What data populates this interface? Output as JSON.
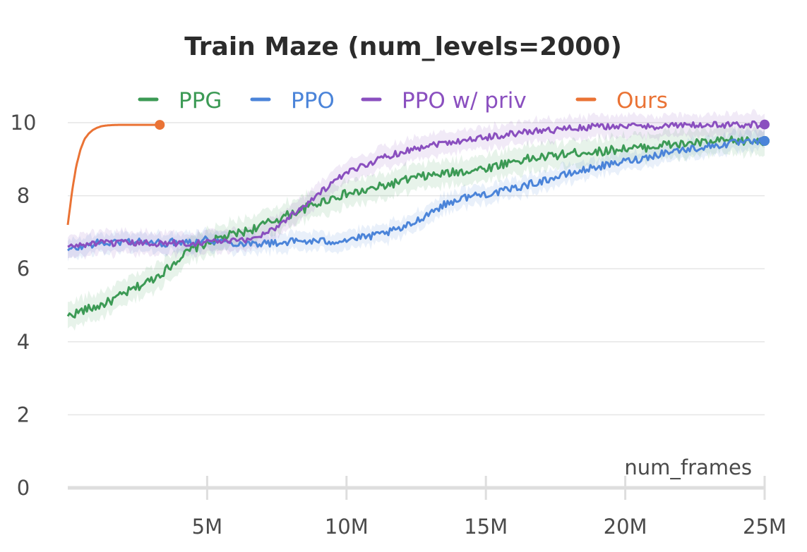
{
  "chart_data": {
    "type": "line",
    "title": "Train Maze (num_levels=2000)",
    "xlabel": "num_frames",
    "ylabel": "",
    "xlim": [
      0,
      25000000
    ],
    "ylim": [
      0,
      10.3
    ],
    "x_ticks": [
      {
        "value": 5000000,
        "label": "5M"
      },
      {
        "value": 10000000,
        "label": "10M"
      },
      {
        "value": 15000000,
        "label": "15M"
      },
      {
        "value": 20000000,
        "label": "20M"
      },
      {
        "value": 25000000,
        "label": "25M"
      }
    ],
    "y_ticks": [
      {
        "value": 0,
        "label": "0"
      },
      {
        "value": 2,
        "label": "2"
      },
      {
        "value": 4,
        "label": "4"
      },
      {
        "value": 6,
        "label": "6"
      },
      {
        "value": 8,
        "label": "8"
      },
      {
        "value": 10,
        "label": "10"
      }
    ],
    "grid": true,
    "legend_position": "top",
    "series": [
      {
        "name": "PPG",
        "color": "#3c9a55",
        "band": 0.35,
        "noise": 0.12,
        "end_marker": true,
        "x": [
          0,
          500000,
          1000000,
          1500000,
          2000000,
          2500000,
          3000000,
          3500000,
          4000000,
          4500000,
          5000000,
          5500000,
          6000000,
          6500000,
          7000000,
          7500000,
          8000000,
          8500000,
          9000000,
          9500000,
          10000000,
          10500000,
          11000000,
          11500000,
          12000000,
          12500000,
          13000000,
          13500000,
          14000000,
          14500000,
          15000000,
          15500000,
          16000000,
          16500000,
          17000000,
          17500000,
          18000000,
          18500000,
          19000000,
          19500000,
          20000000,
          20500000,
          21000000,
          21500000,
          22000000,
          22500000,
          23000000,
          23500000,
          24000000,
          24500000,
          25000000
        ],
        "values": [
          4.7,
          4.85,
          4.95,
          5.1,
          5.3,
          5.5,
          5.7,
          5.95,
          6.3,
          6.55,
          6.7,
          6.85,
          6.95,
          7.05,
          7.2,
          7.35,
          7.5,
          7.65,
          7.8,
          7.95,
          8.05,
          8.1,
          8.2,
          8.3,
          8.4,
          8.5,
          8.55,
          8.6,
          8.65,
          8.7,
          8.75,
          8.85,
          8.95,
          9.0,
          9.05,
          9.1,
          9.15,
          9.2,
          9.2,
          9.25,
          9.3,
          9.3,
          9.35,
          9.4,
          9.4,
          9.45,
          9.45,
          9.5,
          9.5,
          9.5,
          9.5
        ]
      },
      {
        "name": "PPO",
        "color": "#4b84d9",
        "band": 0.25,
        "noise": 0.1,
        "end_marker": true,
        "x": [
          0,
          500000,
          1000000,
          1500000,
          2000000,
          2500000,
          3000000,
          3500000,
          4000000,
          4500000,
          5000000,
          5500000,
          6000000,
          6500000,
          7000000,
          7500000,
          8000000,
          8500000,
          9000000,
          9500000,
          10000000,
          10500000,
          11000000,
          11500000,
          12000000,
          12500000,
          13000000,
          13500000,
          14000000,
          14500000,
          15000000,
          15500000,
          16000000,
          16500000,
          17000000,
          17500000,
          18000000,
          18500000,
          19000000,
          19500000,
          20000000,
          20500000,
          21000000,
          21500000,
          22000000,
          22500000,
          23000000,
          23500000,
          24000000,
          24500000,
          25000000
        ],
        "values": [
          6.5,
          6.6,
          6.7,
          6.7,
          6.75,
          6.75,
          6.7,
          6.7,
          6.75,
          6.75,
          6.8,
          6.75,
          6.7,
          6.7,
          6.7,
          6.7,
          6.75,
          6.75,
          6.75,
          6.75,
          6.8,
          6.85,
          6.9,
          7.0,
          7.1,
          7.3,
          7.55,
          7.75,
          7.9,
          8.0,
          8.05,
          8.1,
          8.2,
          8.3,
          8.4,
          8.5,
          8.6,
          8.7,
          8.8,
          8.85,
          8.95,
          9.0,
          9.1,
          9.2,
          9.25,
          9.3,
          9.35,
          9.4,
          9.45,
          9.45,
          9.5
        ]
      },
      {
        "name": "PPO w/ priv",
        "color": "#8a4fbf",
        "band": 0.3,
        "noise": 0.09,
        "end_marker": true,
        "x": [
          0,
          500000,
          1000000,
          1500000,
          2000000,
          2500000,
          3000000,
          3500000,
          4000000,
          4500000,
          5000000,
          5500000,
          6000000,
          6500000,
          7000000,
          7500000,
          8000000,
          8500000,
          9000000,
          9500000,
          10000000,
          10500000,
          11000000,
          11500000,
          12000000,
          12500000,
          13000000,
          13500000,
          14000000,
          14500000,
          15000000,
          15500000,
          16000000,
          16500000,
          17000000,
          17500000,
          18000000,
          18500000,
          19000000,
          19500000,
          20000000,
          20500000,
          21000000,
          21500000,
          22000000,
          22500000,
          23000000,
          23500000,
          24000000,
          24500000,
          25000000
        ],
        "values": [
          6.6,
          6.65,
          6.7,
          6.7,
          6.7,
          6.7,
          6.7,
          6.7,
          6.7,
          6.7,
          6.75,
          6.75,
          6.75,
          6.8,
          6.95,
          7.15,
          7.45,
          7.75,
          8.05,
          8.35,
          8.6,
          8.8,
          8.95,
          9.1,
          9.2,
          9.3,
          9.4,
          9.45,
          9.5,
          9.55,
          9.6,
          9.65,
          9.7,
          9.75,
          9.8,
          9.8,
          9.85,
          9.85,
          9.9,
          9.9,
          9.9,
          9.9,
          9.9,
          9.92,
          9.92,
          9.93,
          9.93,
          9.94,
          9.94,
          9.95,
          9.95
        ]
      },
      {
        "name": "Ours",
        "color": "#ea7335",
        "band": 0,
        "noise": 0,
        "end_marker": true,
        "x": [
          0,
          150000,
          300000,
          450000,
          600000,
          750000,
          900000,
          1050000,
          1200000,
          1350000,
          1500000,
          1800000,
          2100000,
          2500000,
          3000000,
          3300000
        ],
        "values": [
          7.2,
          8.1,
          8.8,
          9.25,
          9.55,
          9.7,
          9.8,
          9.86,
          9.9,
          9.92,
          9.93,
          9.94,
          9.94,
          9.94,
          9.94,
          9.94
        ]
      }
    ]
  }
}
